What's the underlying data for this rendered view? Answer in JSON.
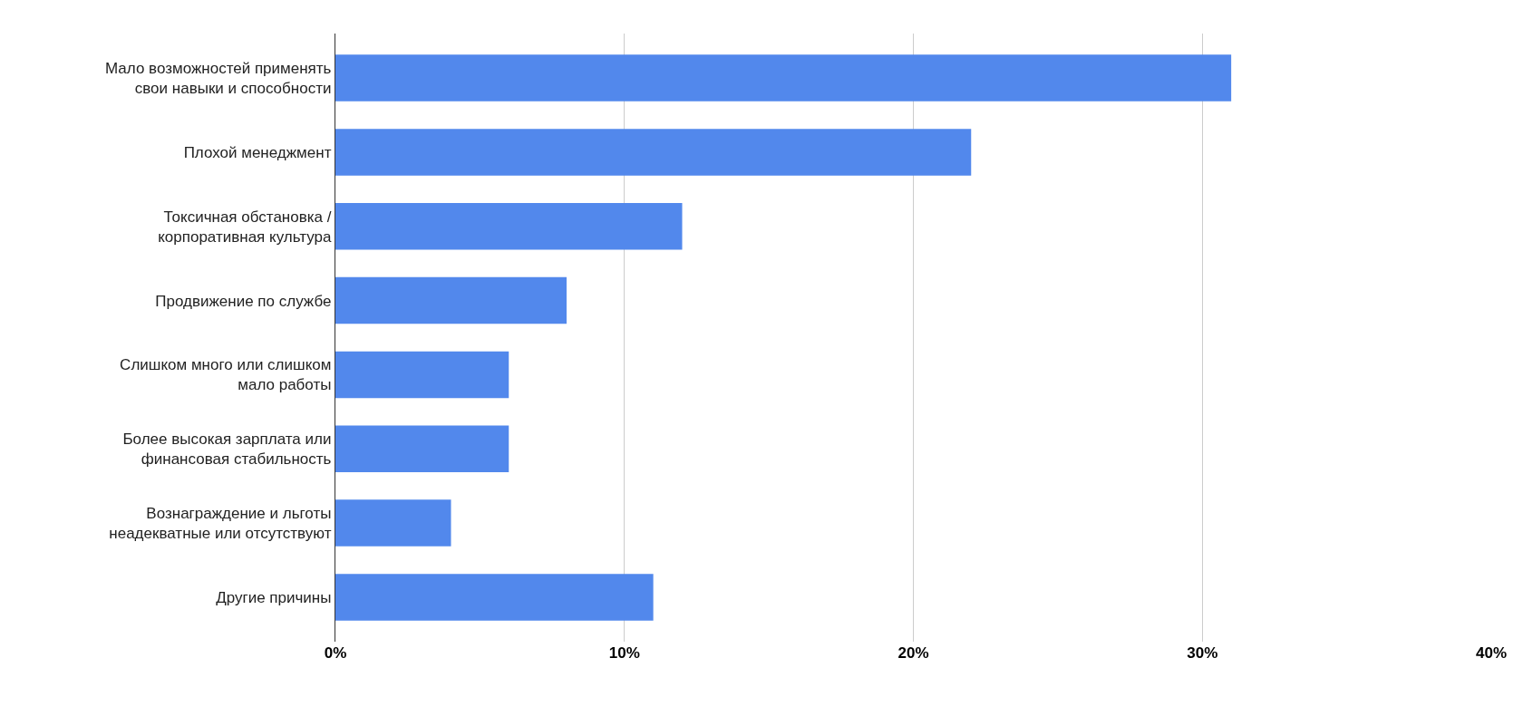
{
  "chart_data": {
    "type": "bar",
    "orientation": "horizontal",
    "categories": [
      "Мало возможностей применять\nсвои навыки и способности",
      "Плохой менеджмент",
      "Токсичная обстановка /\nкорпоративная культура",
      "Продвижение по службе",
      "Слишком много или слишком\nмало работы",
      "Более высокая зарплата или\nфинансовая стабильность",
      "Вознаграждение и льготы\nнеадекватные или отсутствуют",
      "Другие причины"
    ],
    "values": [
      31,
      22,
      12,
      8,
      6,
      6,
      4,
      11
    ],
    "color": "#5288ec",
    "xlim": [
      0,
      40
    ],
    "xticks": [
      {
        "value": 0,
        "label": "0%"
      },
      {
        "value": 10,
        "label": "10%"
      },
      {
        "value": 20,
        "label": "20%"
      },
      {
        "value": 30,
        "label": "30%"
      },
      {
        "value": 40,
        "label": "40%"
      }
    ],
    "grid": "x"
  }
}
